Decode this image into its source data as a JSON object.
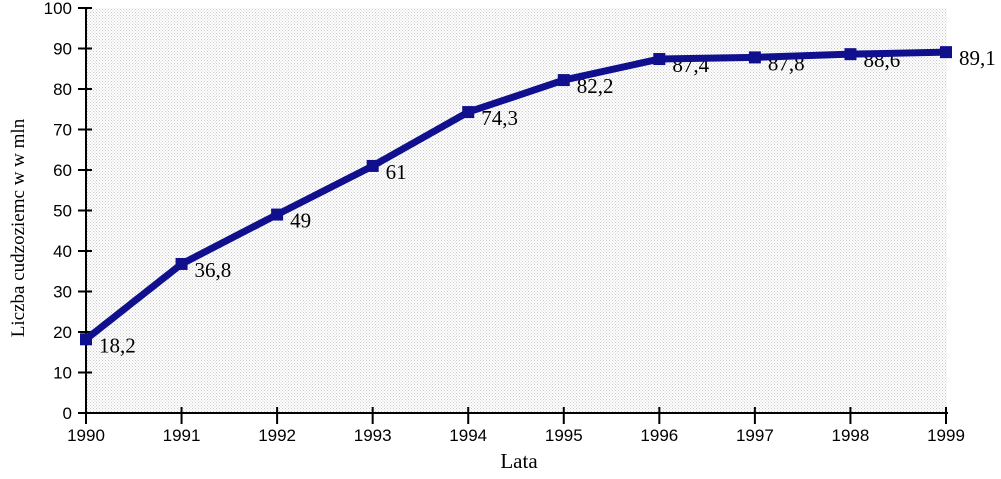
{
  "chart_data": {
    "type": "line",
    "title": "",
    "xlabel": "Lata",
    "ylabel": "Liczba cudzoziemc w w mln",
    "x": [
      "1990",
      "1991",
      "1992",
      "1993",
      "1994",
      "1995",
      "1996",
      "1997",
      "1998",
      "1999"
    ],
    "values": [
      18.2,
      36.8,
      49,
      61,
      74.3,
      82.2,
      87.4,
      87.8,
      88.6,
      89.1
    ],
    "point_labels": [
      "18,2",
      "36,8",
      "49",
      "61",
      "74,3",
      "82,2",
      "87,4",
      "87,8",
      "88,6",
      "89,1"
    ],
    "ylim": [
      0,
      100
    ],
    "yticks": [
      0,
      10,
      20,
      30,
      40,
      50,
      60,
      70,
      80,
      90,
      100
    ],
    "grid": "off",
    "legend": "none",
    "marker": "square",
    "colors": {
      "line": "#10108f",
      "marker": "#10108f",
      "axis": "#000000",
      "text": "#000000",
      "plot_bg_base": "#ffffff",
      "plot_bg_dot": "#c9c9c9"
    }
  }
}
